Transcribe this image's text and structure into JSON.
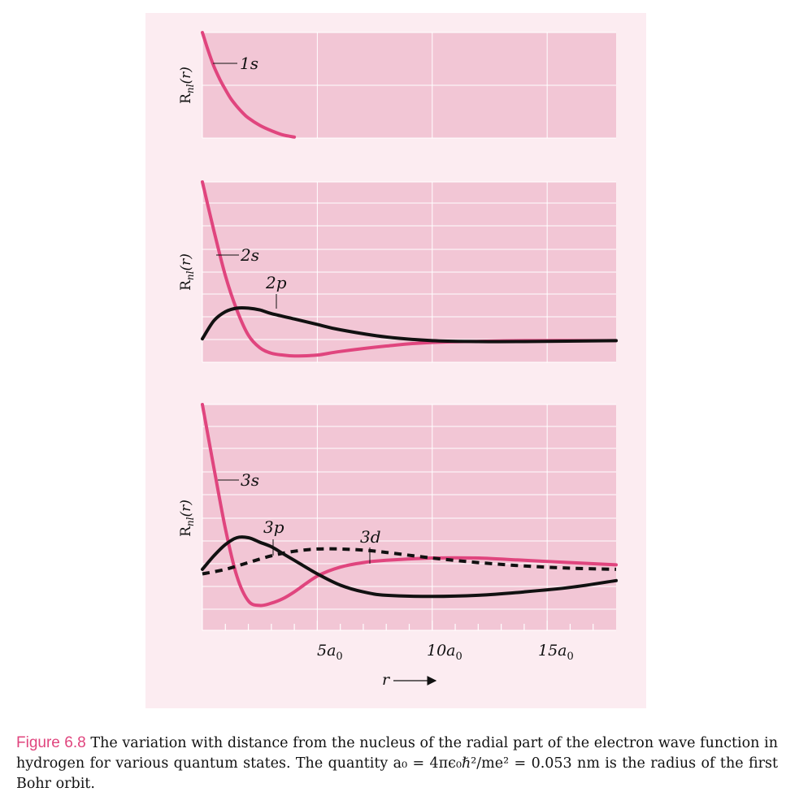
{
  "chart_data": [
    {
      "type": "line",
      "ylabel": "R_{nl}(r)",
      "xlim": [
        0,
        18
      ],
      "series": [
        {
          "name": "1s",
          "color": "#e0457e",
          "style": "solid",
          "x": [
            0,
            0.25,
            0.5,
            0.75,
            1.0,
            1.25,
            1.5,
            1.75,
            2.0,
            2.5,
            3.0,
            3.5,
            4.0
          ],
          "y": [
            1.0,
            0.83,
            0.68,
            0.56,
            0.46,
            0.37,
            0.3,
            0.24,
            0.19,
            0.12,
            0.07,
            0.03,
            0.01
          ]
        }
      ],
      "labels": [
        "1s"
      ]
    },
    {
      "type": "line",
      "ylabel": "R_{nl}(r)",
      "xlim": [
        0,
        18
      ],
      "series": [
        {
          "name": "2s",
          "color": "#e0457e",
          "style": "solid",
          "x": [
            0,
            0.5,
            1.0,
            1.5,
            2.0,
            2.5,
            3.0,
            3.5,
            4.0,
            5.0,
            6.0,
            8.0,
            10.0,
            14.0,
            18.0
          ],
          "y": [
            1.0,
            0.73,
            0.48,
            0.29,
            0.15,
            0.08,
            0.05,
            0.04,
            0.035,
            0.04,
            0.06,
            0.09,
            0.11,
            0.12,
            0.12
          ]
        },
        {
          "name": "2p",
          "color": "#111111",
          "style": "solid",
          "x": [
            0,
            0.5,
            1.0,
            1.5,
            2.0,
            2.5,
            3.0,
            4.0,
            5.0,
            6.0,
            8.0,
            10.0,
            12.0,
            14.0,
            18.0
          ],
          "y": [
            0.13,
            0.23,
            0.28,
            0.3,
            0.3,
            0.29,
            0.27,
            0.24,
            0.21,
            0.18,
            0.14,
            0.12,
            0.115,
            0.115,
            0.12
          ]
        }
      ],
      "labels": [
        "2s",
        "2p"
      ]
    },
    {
      "type": "line",
      "ylabel": "R_{nl}(r)",
      "xlim": [
        0,
        18
      ],
      "xticks": [
        5,
        10,
        15
      ],
      "xticklabels": [
        "5a0",
        "10a0",
        "15a0"
      ],
      "xlabel": "r",
      "series": [
        {
          "name": "3s",
          "color": "#e0457e",
          "style": "solid",
          "x": [
            0,
            0.5,
            1.0,
            1.5,
            2.0,
            2.5,
            3.0,
            3.5,
            4.0,
            5.0,
            6.0,
            7.0,
            8.0,
            10.0,
            12.0,
            14.0,
            16.0,
            18.0
          ],
          "y": [
            1.0,
            0.72,
            0.45,
            0.24,
            0.13,
            0.11,
            0.12,
            0.14,
            0.17,
            0.24,
            0.28,
            0.3,
            0.31,
            0.32,
            0.32,
            0.31,
            0.3,
            0.29
          ]
        },
        {
          "name": "3p",
          "color": "#111111",
          "style": "solid",
          "x": [
            0,
            0.5,
            1.0,
            1.5,
            2.0,
            2.5,
            3.0,
            3.5,
            4.0,
            5.0,
            6.0,
            7.0,
            8.0,
            10.0,
            12.0,
            14.0,
            16.0,
            18.0
          ],
          "y": [
            0.27,
            0.33,
            0.38,
            0.41,
            0.41,
            0.39,
            0.37,
            0.34,
            0.31,
            0.25,
            0.2,
            0.17,
            0.155,
            0.15,
            0.155,
            0.17,
            0.19,
            0.22
          ]
        },
        {
          "name": "3d",
          "color": "#111111",
          "style": "dashed",
          "x": [
            0,
            1.0,
            2.0,
            3.0,
            4.0,
            5.0,
            6.0,
            7.0,
            8.0,
            10.0,
            12.0,
            14.0,
            16.0,
            18.0
          ],
          "y": [
            0.25,
            0.27,
            0.3,
            0.33,
            0.35,
            0.36,
            0.36,
            0.355,
            0.345,
            0.32,
            0.3,
            0.285,
            0.275,
            0.27
          ]
        }
      ],
      "labels": [
        "3s",
        "3p",
        "3d"
      ]
    }
  ],
  "caption": {
    "figure_label": "Figure 6.8",
    "text": " The variation with distance from the nucleus of the radial part of the electron wave function in hydrogen for various quantum states. The quantity a₀ = 4πϵ₀ℏ²/me² = 0.053 nm is the radius of the first Bohr orbit."
  },
  "colors": {
    "panel_bg": "#fcecf1",
    "plot_bg": "#f2c6d5",
    "grid": "#ffffff",
    "pink": "#e0457e",
    "black": "#111111"
  }
}
